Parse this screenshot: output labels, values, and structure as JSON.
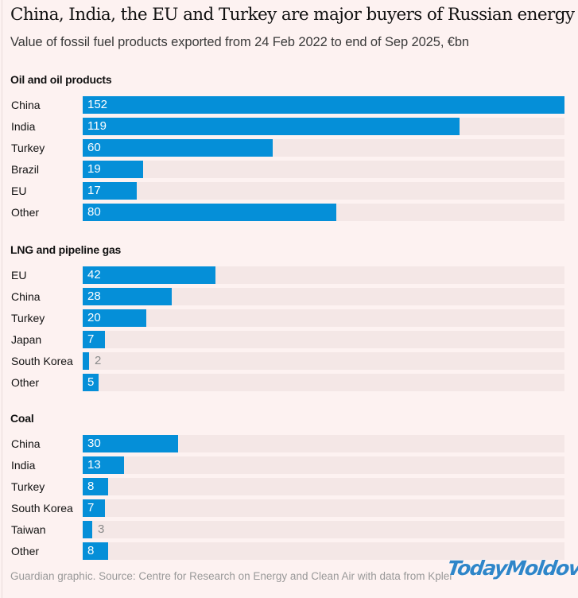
{
  "chart_data": {
    "type": "bar",
    "orientation": "horizontal",
    "title": "China, India, the EU and Turkey are major buyers of Russian energy",
    "subtitle": "Value of fossil fuel products exported from 24 Feb 2022 to end of Sep 2025, €bn",
    "xlim": [
      0,
      152
    ],
    "units": "€bn",
    "grid": false,
    "colors": {
      "bar": "#058fd8",
      "track": "#f4e7e6",
      "background": "#fdf2f1"
    },
    "groups": [
      {
        "name": "Oil and oil products",
        "categories": [
          "China",
          "India",
          "Turkey",
          "Brazil",
          "EU",
          "Other"
        ],
        "values": [
          152,
          119,
          60,
          19,
          17,
          80
        ]
      },
      {
        "name": "LNG and pipeline gas",
        "categories": [
          "EU",
          "China",
          "Turkey",
          "Japan",
          "South Korea",
          "Other"
        ],
        "values": [
          42,
          28,
          20,
          7,
          2,
          5
        ]
      },
      {
        "name": "Coal",
        "categories": [
          "China",
          "India",
          "Turkey",
          "South Korea",
          "Taiwan",
          "Other"
        ],
        "values": [
          30,
          13,
          8,
          7,
          3,
          8
        ]
      }
    ],
    "source": "Guardian graphic. Source: Centre for Research on Energy and Clean Air with data from Kpler"
  },
  "watermark": "TodayMoldova"
}
